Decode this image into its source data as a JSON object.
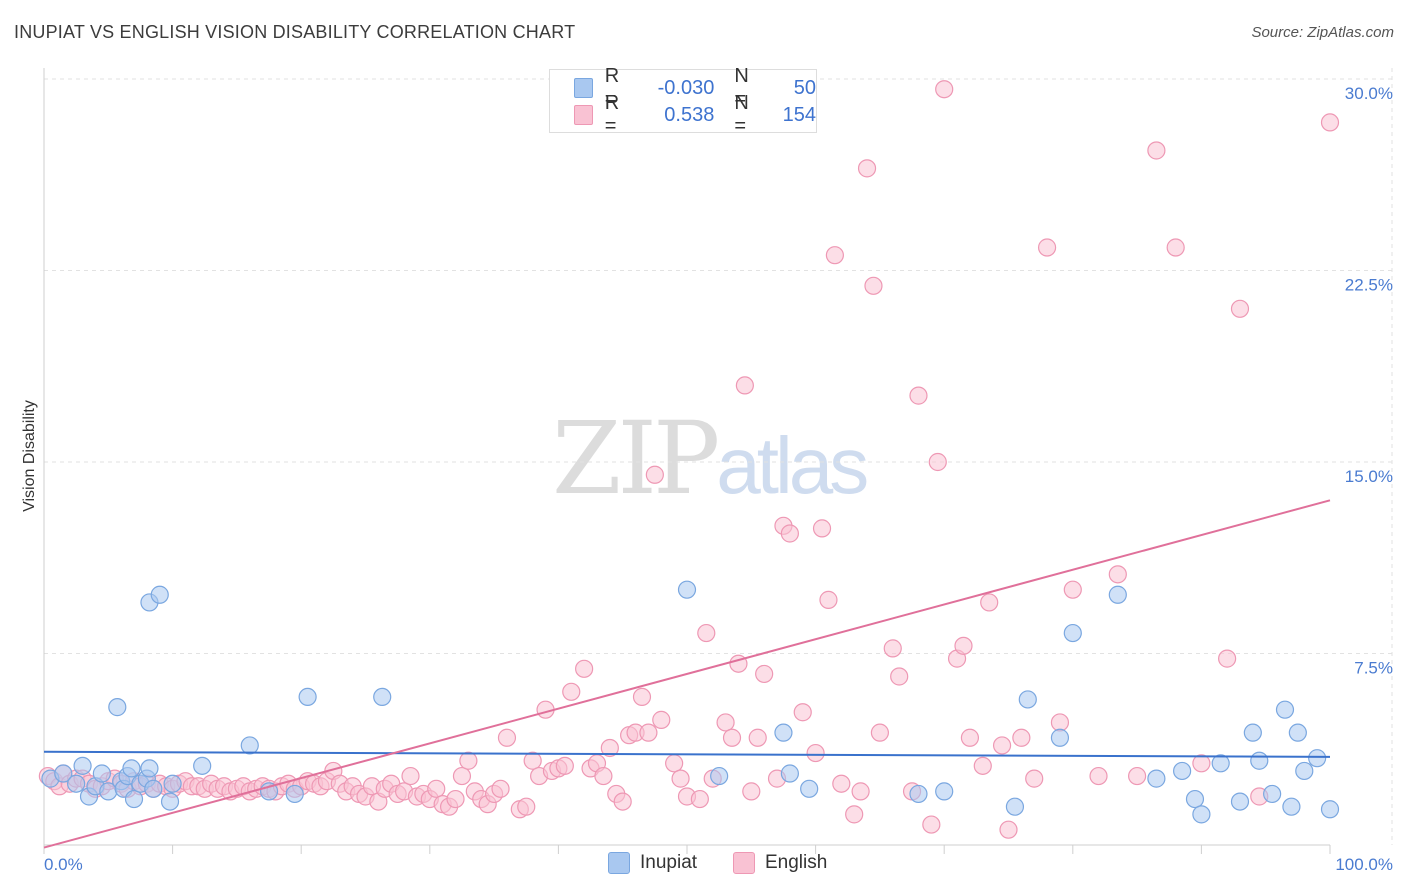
{
  "title": "INUPIAT VS ENGLISH VISION DISABILITY CORRELATION CHART",
  "source": "Source: ZipAtlas.com",
  "watermark": {
    "zip": "ZIP",
    "atlas": "atlas"
  },
  "legend": {
    "rows": [
      {
        "r_label": "R =",
        "r_value": "-0.030",
        "n_label": "N =",
        "n_value": "50",
        "color": "#a9c8f0",
        "border": "#7aa7e0"
      },
      {
        "r_label": "R =",
        "r_value": "0.538",
        "n_label": "N =",
        "n_value": "154",
        "color": "#f9c2d3",
        "border": "#ee98b4"
      }
    ]
  },
  "bottom_legend": [
    {
      "label": "Inupiat",
      "color": "#a9c8f0",
      "border": "#7aa7e0"
    },
    {
      "label": "English",
      "color": "#f9c2d3",
      "border": "#ee98b4"
    }
  ],
  "chart_data": {
    "type": "scatter",
    "xlabel": "",
    "ylabel": "Vision Disability",
    "xlim": [
      0,
      100
    ],
    "ylim": [
      0,
      30
    ],
    "x_tick_labels": [
      "0.0%",
      "100.0%"
    ],
    "y_ticks": [
      7.5,
      15.0,
      22.5,
      30.0
    ],
    "y_tick_labels": [
      "7.5%",
      "15.0%",
      "22.5%",
      "30.0%"
    ],
    "grid": true,
    "series": [
      {
        "name": "Inupiat",
        "color": "#7aa7e0",
        "fill": "#a9c8f0",
        "trend": [
          [
            0,
            3.65
          ],
          [
            100,
            3.45
          ]
        ],
        "points": [
          [
            0.5,
            2.6
          ],
          [
            1.5,
            2.8
          ],
          [
            2.5,
            2.4
          ],
          [
            3,
            3.1
          ],
          [
            3.5,
            1.9
          ],
          [
            4,
            2.3
          ],
          [
            4.5,
            2.8
          ],
          [
            5,
            2.1
          ],
          [
            5.7,
            5.4
          ],
          [
            6,
            2.5
          ],
          [
            6.2,
            2.2
          ],
          [
            6.5,
            2.7
          ],
          [
            6.8,
            3.0
          ],
          [
            7,
            1.8
          ],
          [
            7.5,
            2.4
          ],
          [
            8,
            2.6
          ],
          [
            8.2,
            3.0
          ],
          [
            8.5,
            2.2
          ],
          [
            8.2,
            9.5
          ],
          [
            9,
            9.8
          ],
          [
            9.8,
            1.7
          ],
          [
            10,
            2.4
          ],
          [
            12.3,
            3.1
          ],
          [
            16,
            3.9
          ],
          [
            17.5,
            2.1
          ],
          [
            19.5,
            2.0
          ],
          [
            20.5,
            5.8
          ],
          [
            26.3,
            5.8
          ],
          [
            50,
            10.0
          ],
          [
            52.5,
            2.7
          ],
          [
            57.5,
            4.4
          ],
          [
            58,
            2.8
          ],
          [
            59.5,
            2.2
          ],
          [
            68,
            2.0
          ],
          [
            70,
            2.1
          ],
          [
            75.5,
            1.5
          ],
          [
            76.5,
            5.7
          ],
          [
            79,
            4.2
          ],
          [
            80,
            8.3
          ],
          [
            83.5,
            9.8
          ],
          [
            86.5,
            2.6
          ],
          [
            88.5,
            2.9
          ],
          [
            89.5,
            1.8
          ],
          [
            90,
            1.2
          ],
          [
            91.5,
            3.2
          ],
          [
            93,
            1.7
          ],
          [
            94,
            4.4
          ],
          [
            94.5,
            3.3
          ],
          [
            95.5,
            2.0
          ],
          [
            96.5,
            5.3
          ],
          [
            97,
            1.5
          ],
          [
            97.5,
            4.4
          ],
          [
            98,
            2.9
          ],
          [
            99,
            3.4
          ],
          [
            100,
            1.4
          ]
        ]
      },
      {
        "name": "English",
        "color": "#ee98b4",
        "fill": "#f9c2d3",
        "trend": [
          [
            0,
            -0.1
          ],
          [
            100,
            13.5
          ]
        ],
        "points": [
          [
            0.3,
            2.7
          ],
          [
            0.8,
            2.5
          ],
          [
            1.2,
            2.3
          ],
          [
            1.5,
            2.8
          ],
          [
            2,
            2.4
          ],
          [
            2.5,
            2.6
          ],
          [
            3,
            2.6
          ],
          [
            3.5,
            2.4
          ],
          [
            4,
            2.2
          ],
          [
            4.5,
            2.3
          ],
          [
            5,
            2.5
          ],
          [
            5.5,
            2.6
          ],
          [
            6,
            2.4
          ],
          [
            6.5,
            2.2
          ],
          [
            7,
            2.5
          ],
          [
            7.5,
            2.3
          ],
          [
            8,
            2.4
          ],
          [
            8.5,
            2.2
          ],
          [
            9,
            2.4
          ],
          [
            9.5,
            2.3
          ],
          [
            10,
            2.2
          ],
          [
            10.5,
            2.4
          ],
          [
            11,
            2.5
          ],
          [
            11.5,
            2.3
          ],
          [
            12,
            2.3
          ],
          [
            12.5,
            2.2
          ],
          [
            13,
            2.4
          ],
          [
            13.5,
            2.2
          ],
          [
            14,
            2.3
          ],
          [
            14.5,
            2.1
          ],
          [
            15,
            2.2
          ],
          [
            15.5,
            2.3
          ],
          [
            16,
            2.1
          ],
          [
            16.5,
            2.2
          ],
          [
            17,
            2.3
          ],
          [
            17.5,
            2.2
          ],
          [
            18,
            2.1
          ],
          [
            18.5,
            2.3
          ],
          [
            19,
            2.4
          ],
          [
            19.5,
            2.2
          ],
          [
            20,
            2.3
          ],
          [
            20.5,
            2.5
          ],
          [
            21,
            2.4
          ],
          [
            21.5,
            2.3
          ],
          [
            22,
            2.5
          ],
          [
            22.5,
            2.9
          ],
          [
            23,
            2.4
          ],
          [
            23.5,
            2.1
          ],
          [
            24,
            2.3
          ],
          [
            24.5,
            2.0
          ],
          [
            25,
            1.9
          ],
          [
            25.5,
            2.3
          ],
          [
            26,
            1.7
          ],
          [
            26.5,
            2.2
          ],
          [
            27,
            2.4
          ],
          [
            27.5,
            2.0
          ],
          [
            28,
            2.1
          ],
          [
            28.5,
            2.7
          ],
          [
            29,
            1.9
          ],
          [
            29.5,
            2.0
          ],
          [
            30,
            1.8
          ],
          [
            30.5,
            2.2
          ],
          [
            31,
            1.6
          ],
          [
            31.5,
            1.5
          ],
          [
            32,
            1.8
          ],
          [
            32.5,
            2.7
          ],
          [
            33,
            3.3
          ],
          [
            33.5,
            2.1
          ],
          [
            34,
            1.8
          ],
          [
            34.5,
            1.6
          ],
          [
            35,
            2.0
          ],
          [
            35.5,
            2.2
          ],
          [
            36,
            4.2
          ],
          [
            37,
            1.4
          ],
          [
            37.5,
            1.5
          ],
          [
            38,
            3.3
          ],
          [
            38.5,
            2.7
          ],
          [
            39,
            5.3
          ],
          [
            39.5,
            2.9
          ],
          [
            40,
            3.0
          ],
          [
            40.5,
            3.1
          ],
          [
            41,
            6.0
          ],
          [
            42,
            6.9
          ],
          [
            42.5,
            3.0
          ],
          [
            43,
            3.2
          ],
          [
            43.5,
            2.7
          ],
          [
            44,
            3.8
          ],
          [
            44.5,
            2.0
          ],
          [
            45,
            1.7
          ],
          [
            45.5,
            4.3
          ],
          [
            46,
            4.4
          ],
          [
            46.5,
            5.8
          ],
          [
            47,
            4.4
          ],
          [
            47.5,
            14.5
          ],
          [
            48,
            4.9
          ],
          [
            49,
            3.2
          ],
          [
            49.5,
            2.6
          ],
          [
            50,
            1.9
          ],
          [
            51,
            1.8
          ],
          [
            51.5,
            8.3
          ],
          [
            52,
            2.6
          ],
          [
            53,
            4.8
          ],
          [
            53.5,
            4.2
          ],
          [
            54,
            7.1
          ],
          [
            54.5,
            18.0
          ],
          [
            55,
            2.1
          ],
          [
            55.5,
            4.2
          ],
          [
            56,
            6.7
          ],
          [
            57,
            2.6
          ],
          [
            57.5,
            12.5
          ],
          [
            58,
            12.2
          ],
          [
            59,
            5.2
          ],
          [
            60,
            3.6
          ],
          [
            60.5,
            12.4
          ],
          [
            61,
            9.6
          ],
          [
            61.5,
            23.1
          ],
          [
            62,
            2.4
          ],
          [
            63,
            1.2
          ],
          [
            63.5,
            2.1
          ],
          [
            64,
            26.5
          ],
          [
            64.5,
            21.9
          ],
          [
            65,
            4.4
          ],
          [
            66,
            7.7
          ],
          [
            66.5,
            6.6
          ],
          [
            67.5,
            2.1
          ],
          [
            68,
            17.6
          ],
          [
            69,
            0.8
          ],
          [
            69.5,
            15.0
          ],
          [
            70,
            29.6
          ],
          [
            71,
            7.3
          ],
          [
            71.5,
            7.8
          ],
          [
            72,
            4.2
          ],
          [
            73,
            3.1
          ],
          [
            73.5,
            9.5
          ],
          [
            74.5,
            3.9
          ],
          [
            75,
            0.6
          ],
          [
            76,
            4.2
          ],
          [
            77,
            2.6
          ],
          [
            78,
            23.4
          ],
          [
            79,
            4.8
          ],
          [
            80,
            10.0
          ],
          [
            82,
            2.7
          ],
          [
            83.5,
            10.6
          ],
          [
            85,
            2.7
          ],
          [
            86.5,
            27.2
          ],
          [
            88,
            23.4
          ],
          [
            90,
            3.2
          ],
          [
            92,
            7.3
          ],
          [
            93,
            21.0
          ],
          [
            94.5,
            1.9
          ],
          [
            100,
            28.3
          ]
        ]
      }
    ]
  }
}
